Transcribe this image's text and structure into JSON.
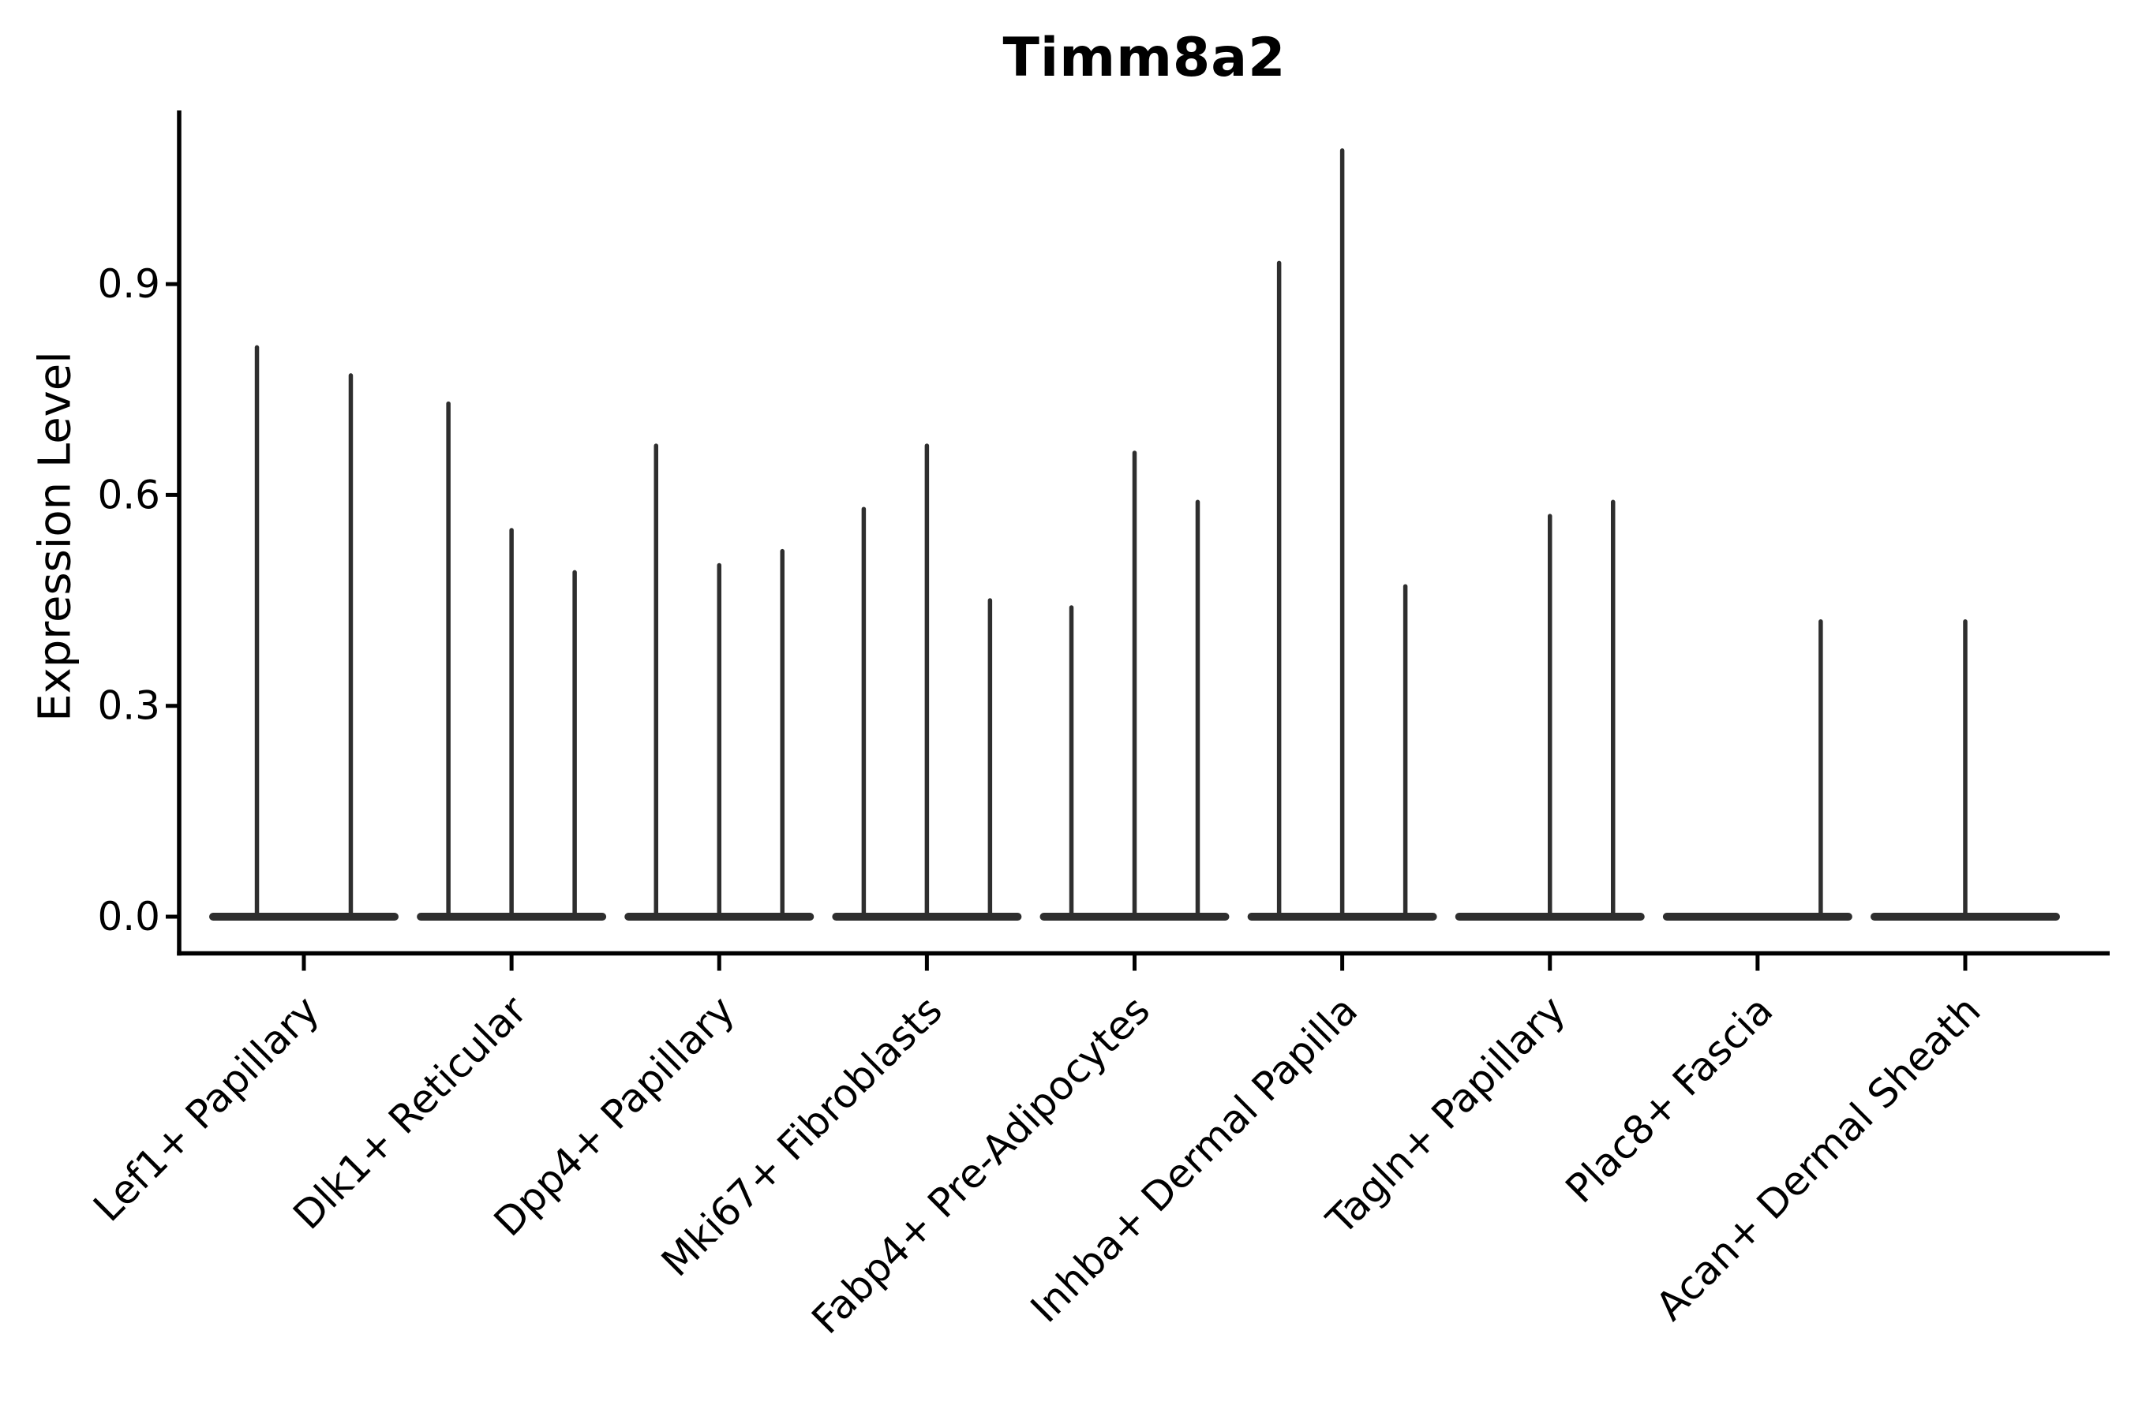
{
  "title": "Timm8a2",
  "y_axis": {
    "label": "Expression Level",
    "tick_labels": [
      "0.0",
      "0.3",
      "0.6",
      "0.9"
    ]
  },
  "colors": {
    "violin": "#2e2e2e",
    "spine": "#000000",
    "text": "#000000",
    "background": "#ffffff"
  },
  "chart_data": {
    "type": "violin",
    "title": "Timm8a2",
    "xlabel": "",
    "ylabel": "Expression Level",
    "ylim": [
      -0.052,
      1.147
    ],
    "yticks": [
      0.0,
      0.3,
      0.6,
      0.9
    ],
    "grid": false,
    "legend": "none",
    "style_note": "needle violins: wide flat body at expression 0, hair-thin spike up to the maximum expression value; several dodged sub-violins per cluster",
    "categories": [
      "Lef1+ Papillary",
      "Dlk1+ Reticular",
      "Dpp4+ Papillary",
      "Mki67+ Fibroblasts",
      "Fabp4+ Pre-Adipocytes",
      "Inhba+ Dermal Papilla",
      "Tagln+ Papillary",
      "Plac8+ Fascia",
      "Acan+ Dermal Sheath"
    ],
    "violins": [
      {
        "category": "Lef1+ Papillary",
        "sub_violins": [
          {
            "offset_frac": -0.226,
            "max": 0.81
          },
          {
            "offset_frac": 0.226,
            "max": 0.77
          }
        ]
      },
      {
        "category": "Dlk1+ Reticular",
        "sub_violins": [
          {
            "offset_frac": -0.304,
            "max": 0.73
          },
          {
            "offset_frac": 0.0,
            "max": 0.55
          },
          {
            "offset_frac": 0.304,
            "max": 0.49
          }
        ]
      },
      {
        "category": "Dpp4+ Papillary",
        "sub_violins": [
          {
            "offset_frac": -0.304,
            "max": 0.67
          },
          {
            "offset_frac": 0.0,
            "max": 0.5
          },
          {
            "offset_frac": 0.304,
            "max": 0.52
          }
        ]
      },
      {
        "category": "Mki67+ Fibroblasts",
        "sub_violins": [
          {
            "offset_frac": -0.304,
            "max": 0.58
          },
          {
            "offset_frac": 0.0,
            "max": 0.67
          },
          {
            "offset_frac": 0.304,
            "max": 0.45
          }
        ]
      },
      {
        "category": "Fabp4+ Pre-Adipocytes",
        "sub_violins": [
          {
            "offset_frac": -0.304,
            "max": 0.44
          },
          {
            "offset_frac": 0.0,
            "max": 0.66
          },
          {
            "offset_frac": 0.304,
            "max": 0.59
          }
        ]
      },
      {
        "category": "Inhba+ Dermal Papilla",
        "sub_violins": [
          {
            "offset_frac": -0.304,
            "max": 0.93
          },
          {
            "offset_frac": 0.0,
            "max": 1.09
          },
          {
            "offset_frac": 0.304,
            "max": 0.47
          }
        ]
      },
      {
        "category": "Tagln+ Papillary",
        "sub_violins": [
          {
            "offset_frac": -0.304,
            "max": 0.0
          },
          {
            "offset_frac": 0.0,
            "max": 0.57
          },
          {
            "offset_frac": 0.304,
            "max": 0.59
          }
        ]
      },
      {
        "category": "Plac8+ Fascia",
        "sub_violins": [
          {
            "offset_frac": -0.304,
            "max": 0.0
          },
          {
            "offset_frac": 0.0,
            "max": 0.0
          },
          {
            "offset_frac": 0.304,
            "max": 0.42
          }
        ]
      },
      {
        "category": "Acan+ Dermal Sheath",
        "sub_violins": [
          {
            "offset_frac": -0.304,
            "max": 0.0
          },
          {
            "offset_frac": 0.0,
            "max": 0.42
          },
          {
            "offset_frac": 0.304,
            "max": 0.0
          }
        ]
      }
    ]
  }
}
